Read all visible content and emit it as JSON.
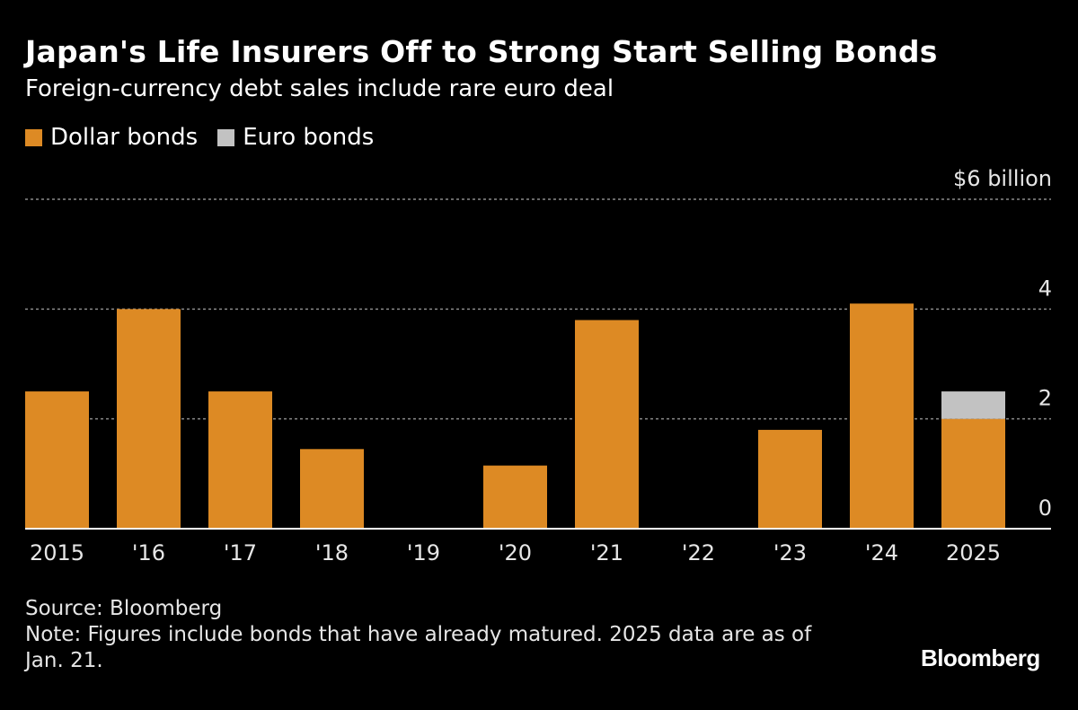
{
  "header": {
    "title": "Japan's Life Insurers Off to Strong Start Selling Bonds",
    "subtitle": "Foreign-currency debt sales include rare euro deal"
  },
  "legend": [
    {
      "label": "Dollar bonds",
      "color": "#DD8A24"
    },
    {
      "label": "Euro bonds",
      "color": "#C2C2C2"
    }
  ],
  "chart_data": {
    "type": "bar",
    "stacked": true,
    "categories": [
      "2015",
      "'16",
      "'17",
      "'18",
      "'19",
      "'20",
      "'21",
      "'22",
      "'23",
      "'24",
      "2025"
    ],
    "series": [
      {
        "name": "Dollar bonds",
        "color": "#DD8A24",
        "values": [
          2.5,
          4.0,
          2.5,
          1.45,
          0,
          1.15,
          3.8,
          0,
          1.8,
          4.1,
          2.0
        ]
      },
      {
        "name": "Euro bonds",
        "color": "#C2C2C2",
        "values": [
          0,
          0,
          0,
          0,
          0,
          0,
          0,
          0,
          0,
          0,
          0.5
        ]
      }
    ],
    "ylim": [
      0,
      6
    ],
    "y_ticks": [
      0,
      2,
      4,
      6
    ],
    "y_tick_labels": [
      "0",
      "2",
      "4",
      "$6 billion"
    ],
    "grid": "horizontal dashed",
    "legend_position": "top-left"
  },
  "footer": {
    "source": "Source: Bloomberg",
    "note": "Note: Figures include bonds that have already matured. 2025 data are as of Jan. 21."
  },
  "brand": "Bloomberg"
}
